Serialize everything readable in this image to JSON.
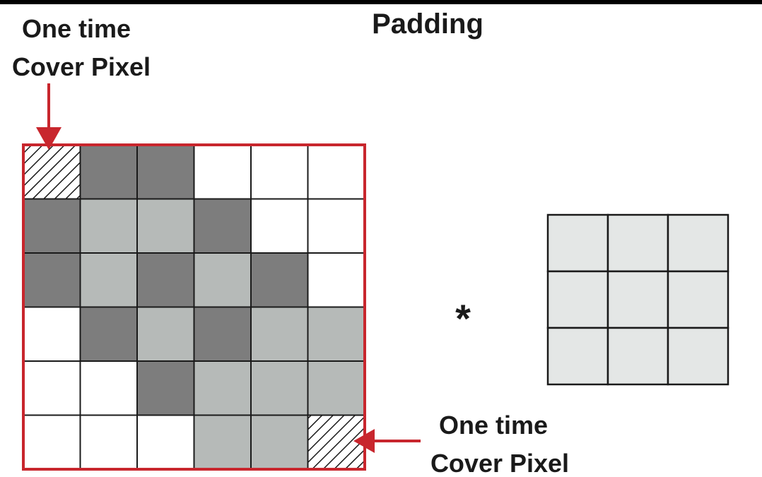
{
  "title": "Padding",
  "annotation_top": {
    "line1": "One time",
    "line2": "Cover Pixel"
  },
  "annotation_bottom": {
    "line1": "One time",
    "line2": "Cover Pixel"
  },
  "operator": "*",
  "input_grid": {
    "rows": 6,
    "cols": 6,
    "cells": [
      [
        "hatched",
        "dark",
        "dark",
        "white",
        "white",
        "white"
      ],
      [
        "dark",
        "light",
        "light",
        "dark",
        "white",
        "white"
      ],
      [
        "dark",
        "light",
        "dark",
        "light",
        "dark",
        "white"
      ],
      [
        "white",
        "dark",
        "light",
        "dark",
        "light",
        "light"
      ],
      [
        "white",
        "white",
        "dark",
        "light",
        "light",
        "light"
      ],
      [
        "white",
        "white",
        "white",
        "light",
        "light",
        "hatched"
      ]
    ]
  },
  "kernel_grid": {
    "rows": 3,
    "cols": 3
  },
  "colors": {
    "dark": "#7d7d7d",
    "light": "#b6bab8",
    "white": "#ffffff",
    "kernel": "#e4e7e6",
    "border": "#c8262d",
    "arrow": "#c8262d",
    "line": "#1a1a1a"
  }
}
